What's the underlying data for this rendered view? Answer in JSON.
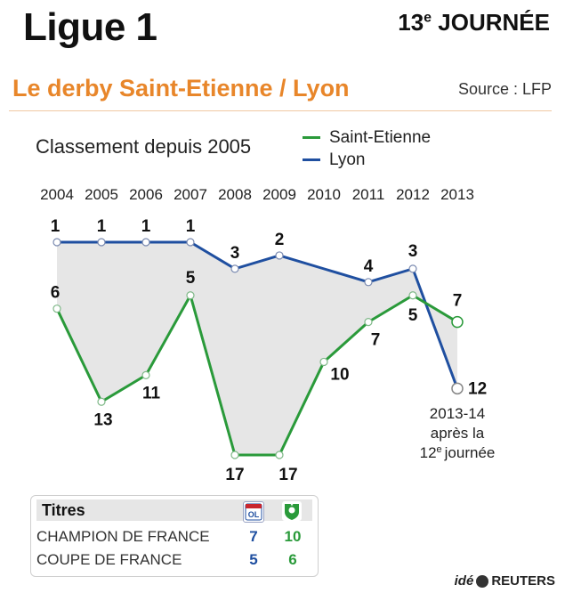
{
  "header": {
    "title": "Ligue 1",
    "matchday_number": "13",
    "matchday_suffix": "e",
    "matchday_word": "JOURNÉE",
    "subtitle": "Le derby Saint-Etienne / Lyon",
    "source": "Source : LFP"
  },
  "chart_data": {
    "type": "line",
    "title": "Classement depuis 2005",
    "x": [
      "2004",
      "2005",
      "2006",
      "2007",
      "2008",
      "2009",
      "2010",
      "2011",
      "2012",
      "2013"
    ],
    "y_axis": "rank",
    "y_inverted": true,
    "ylim": [
      1,
      17
    ],
    "series": [
      {
        "name": "Saint-Etienne",
        "color": "#2a9a3a",
        "values": [
          6,
          13,
          11,
          5,
          17,
          17,
          10,
          7,
          5,
          7
        ]
      },
      {
        "name": "Lyon",
        "color": "#1f4fa0",
        "values": [
          1,
          1,
          1,
          1,
          3,
          2,
          null,
          4,
          3,
          12
        ]
      }
    ],
    "fill_between": {
      "color": "#e6e6e6"
    },
    "annotation": {
      "line1": "2013-14",
      "line2": "après la",
      "line3_num": "12",
      "line3_sup": "e",
      "line3_word": "journée"
    },
    "legend_placement": "top-right"
  },
  "titles": {
    "heading": "Titres",
    "crests": {
      "lyon": "lyon-crest-icon",
      "ste": "saint-etienne-crest-icon"
    },
    "rows": [
      {
        "label": "CHAMPION DE FRANCE",
        "lyon": "7",
        "ste": "10"
      },
      {
        "label": "COUPE DE FRANCE",
        "lyon": "5",
        "ste": "6"
      }
    ]
  },
  "credit": {
    "ide": "idé",
    "reuters": "REUTERS"
  }
}
